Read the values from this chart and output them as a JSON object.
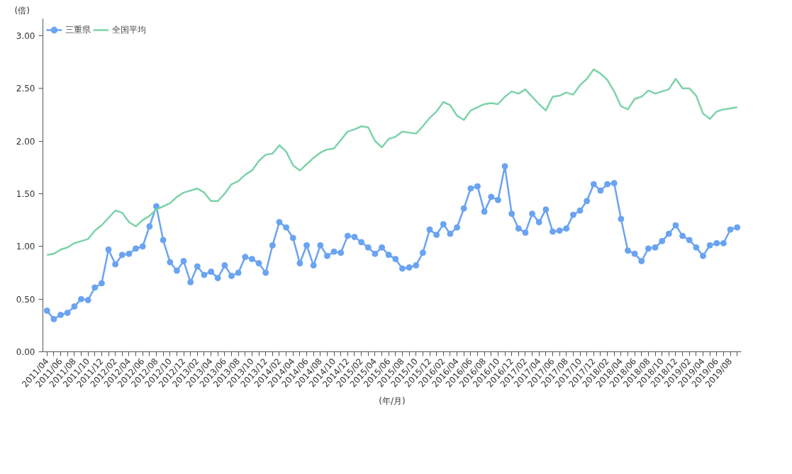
{
  "chart_data": {
    "type": "line",
    "ylabel": "(倍)",
    "xlabel": "(年/月)",
    "categories": [
      "2011/04",
      null,
      "2011/06",
      null,
      "2011/08",
      null,
      "2011/10",
      null,
      "2011/12",
      null,
      "2012/02",
      null,
      "2012/04",
      null,
      "2012/06",
      null,
      "2012/08",
      null,
      "2012/10",
      null,
      "2012/12",
      null,
      "2013/02",
      null,
      "2013/04",
      null,
      "2013/06",
      null,
      "2013/08",
      null,
      "2013/10",
      null,
      "2013/12",
      null,
      "2014/02",
      null,
      "2014/04",
      null,
      "2014/06",
      null,
      "2014/08",
      null,
      "2014/10",
      null,
      "2014/12",
      null,
      "2015/02",
      null,
      "2015/04",
      null,
      "2015/06",
      null,
      "2015/08",
      null,
      "2015/10",
      null,
      "2015/12",
      null,
      "2016/02",
      null,
      "2016/04",
      null,
      "2016/06",
      null,
      "2016/08",
      null,
      "2016/10",
      null,
      "2016/12",
      null,
      "2017/02",
      null,
      "2017/04",
      null,
      "2017/06",
      null,
      "2017/08",
      null,
      "2017/10",
      null,
      "2017/12",
      null,
      "2018/02",
      null,
      "2018/04",
      null,
      "2018/06",
      null,
      "2018/08",
      null,
      "2018/10",
      null,
      "2018/12",
      null,
      "2019/02",
      null,
      "2019/04",
      null,
      "2019/06",
      null,
      "2019/08",
      null
    ],
    "series": [
      {
        "name": "三重県",
        "color": "#6aa3f2",
        "marker": "circle",
        "values": [
          0.39,
          0.31,
          0.35,
          0.37,
          0.43,
          0.5,
          0.49,
          0.61,
          0.65,
          0.97,
          0.83,
          0.92,
          0.93,
          0.98,
          1.0,
          1.19,
          1.38,
          1.06,
          0.85,
          0.77,
          0.86,
          0.66,
          0.81,
          0.73,
          0.76,
          0.7,
          0.82,
          0.72,
          0.75,
          0.9,
          0.88,
          0.84,
          0.75,
          1.01,
          1.23,
          1.18,
          1.08,
          0.84,
          1.01,
          0.82,
          1.01,
          0.91,
          0.95,
          0.94,
          1.1,
          1.09,
          1.04,
          0.99,
          0.93,
          0.99,
          0.92,
          0.88,
          0.79,
          0.8,
          0.82,
          0.94,
          1.16,
          1.11,
          1.21,
          1.12,
          1.18,
          1.36,
          1.55,
          1.57,
          1.33,
          1.47,
          1.44,
          1.76,
          1.31,
          1.17,
          1.13,
          1.31,
          1.23,
          1.35,
          1.14,
          1.15,
          1.17,
          1.3,
          1.34,
          1.43,
          1.59,
          1.53,
          1.59,
          1.6,
          1.26,
          0.96,
          0.93,
          0.86,
          0.98,
          0.99,
          1.05,
          1.12,
          1.2,
          1.1,
          1.06,
          0.99,
          0.91,
          1.01,
          1.03,
          1.03,
          1.16,
          1.18
        ]
      },
      {
        "name": "全国平均",
        "color": "#7dd3a8",
        "marker": "none",
        "values": [
          0.92,
          0.93,
          0.97,
          0.99,
          1.03,
          1.05,
          1.07,
          1.15,
          1.2,
          1.27,
          1.34,
          1.32,
          1.23,
          1.19,
          1.25,
          1.29,
          1.35,
          1.38,
          1.41,
          1.47,
          1.51,
          1.53,
          1.55,
          1.51,
          1.43,
          1.43,
          1.5,
          1.59,
          1.62,
          1.68,
          1.72,
          1.81,
          1.87,
          1.88,
          1.96,
          1.9,
          1.77,
          1.72,
          1.78,
          1.84,
          1.89,
          1.92,
          1.93,
          2.01,
          2.09,
          2.11,
          2.14,
          2.13,
          2.0,
          1.94,
          2.02,
          2.04,
          2.09,
          2.08,
          2.07,
          2.14,
          2.22,
          2.28,
          2.37,
          2.34,
          2.24,
          2.2,
          2.29,
          2.32,
          2.35,
          2.36,
          2.35,
          2.42,
          2.47,
          2.45,
          2.49,
          2.42,
          2.35,
          2.29,
          2.42,
          2.43,
          2.46,
          2.44,
          2.53,
          2.59,
          2.68,
          2.64,
          2.58,
          2.47,
          2.33,
          2.3,
          2.4,
          2.42,
          2.48,
          2.45,
          2.47,
          2.49,
          2.59,
          2.5,
          2.5,
          2.43,
          2.26,
          2.21,
          2.28,
          2.3,
          2.31,
          2.32
        ]
      }
    ],
    "ylim": [
      0,
      3.16
    ],
    "yticks": [
      {
        "value": 0,
        "label": "0.00"
      },
      {
        "value": 0.5,
        "label": "0.50"
      },
      {
        "value": 1,
        "label": "1.00"
      },
      {
        "value": 1.5,
        "label": "1.50"
      },
      {
        "value": 2,
        "label": "2.00"
      },
      {
        "value": 2.5,
        "label": "2.50"
      },
      {
        "value": 3,
        "label": "3.00"
      }
    ],
    "grid": false,
    "legend": "top left",
    "line_style": "solid"
  }
}
